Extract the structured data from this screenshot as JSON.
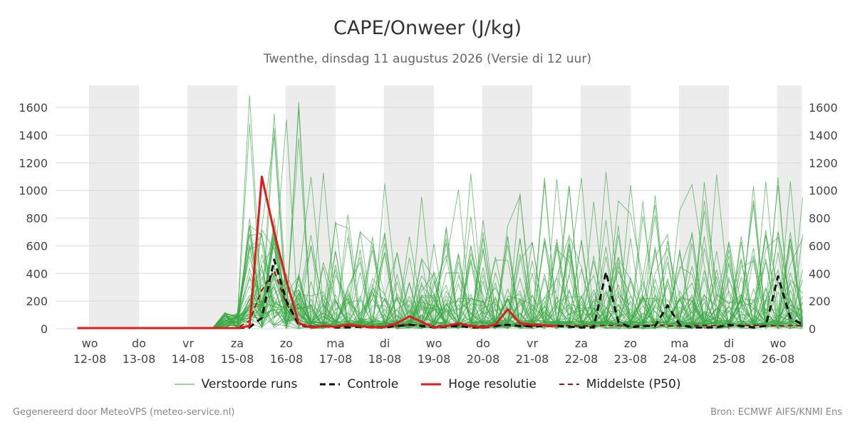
{
  "title": "CAPE/Onweer (J/kg)",
  "subtitle": "Twenthe, dinsdag 11 augustus 2026 (Versie di 12 uur)",
  "footer": {
    "left": "Gegenereerd door MeteoVPS (meteo-service.nl)",
    "right": "Bron: ECMWF AIFS/KNMI Ens"
  },
  "legend": [
    {
      "label": "Verstoorde runs",
      "color": "#41a447",
      "style": "thin"
    },
    {
      "label": "Controle",
      "color": "#111111",
      "style": "dashed"
    },
    {
      "label": "Hoge resolutie",
      "color": "#e31a1c",
      "style": "solid"
    },
    {
      "label": "Middelste (P50)",
      "color": "#a01010",
      "style": "dashed"
    }
  ],
  "chart_data": {
    "type": "line",
    "title": "CAPE/Onweer (J/kg)",
    "subtitle": "Twenthe, dinsdag 11 augustus 2026 (Versie di 12 uur)",
    "x_unit": "days since 12-08 (noon)",
    "xlim": [
      -0.25,
      14.5
    ],
    "ylim": [
      0,
      1760
    ],
    "yticks": [
      0,
      200,
      400,
      600,
      800,
      1000,
      1200,
      1400,
      1600
    ],
    "grid": true,
    "shaded_days": [
      0,
      2,
      4,
      6,
      8,
      10,
      12,
      14
    ],
    "xticks": [
      {
        "day": "wo",
        "date": "12-08"
      },
      {
        "day": "do",
        "date": "13-08"
      },
      {
        "day": "vr",
        "date": "14-08"
      },
      {
        "day": "za",
        "date": "15-08"
      },
      {
        "day": "zo",
        "date": "16-08"
      },
      {
        "day": "ma",
        "date": "17-08"
      },
      {
        "day": "di",
        "date": "18-08"
      },
      {
        "day": "wo",
        "date": "19-08"
      },
      {
        "day": "do",
        "date": "20-08"
      },
      {
        "day": "vr",
        "date": "21-08"
      },
      {
        "day": "za",
        "date": "22-08"
      },
      {
        "day": "zo",
        "date": "23-08"
      },
      {
        "day": "ma",
        "date": "24-08"
      },
      {
        "day": "di",
        "date": "25-08"
      },
      {
        "day": "wo",
        "date": "26-08"
      }
    ],
    "series": [
      {
        "name": "Hoge resolutie",
        "color": "#e31a1c",
        "x": [
          -0.25,
          0,
          0.5,
          1,
          1.5,
          2,
          2.5,
          3,
          3.25,
          3.5,
          3.75,
          4,
          4.25,
          4.5,
          4.75,
          5,
          5.25,
          5.5,
          5.75,
          6,
          6.25,
          6.5,
          6.75,
          7,
          7.25,
          7.5,
          7.75,
          8,
          8.25,
          8.5,
          8.75,
          9,
          9.25,
          9.5
        ],
        "y": [
          5,
          5,
          5,
          5,
          5,
          5,
          5,
          5,
          20,
          1100,
          700,
          350,
          40,
          10,
          20,
          15,
          30,
          20,
          10,
          15,
          40,
          90,
          50,
          10,
          20,
          40,
          20,
          10,
          30,
          140,
          40,
          30,
          25,
          20
        ]
      },
      {
        "name": "Controle",
        "color": "#111111",
        "x": [
          -0.25,
          0,
          0.5,
          1,
          1.5,
          2,
          2.5,
          3,
          3.25,
          3.5,
          3.75,
          4,
          4.25,
          4.5,
          4.75,
          5,
          5.25,
          5.5,
          5.75,
          6,
          6.25,
          6.5,
          6.75,
          7,
          7.25,
          7.5,
          7.75,
          8,
          8.25,
          8.5,
          8.75,
          9,
          9.25,
          9.5,
          9.75,
          10,
          10.25,
          10.5,
          10.75,
          11,
          11.25,
          11.5,
          11.75,
          12,
          12.25,
          12.5,
          12.75,
          13,
          13.25,
          13.5,
          13.75,
          14,
          14.25,
          14.5
        ],
        "y": [
          5,
          5,
          5,
          5,
          5,
          5,
          5,
          5,
          10,
          80,
          500,
          200,
          30,
          10,
          20,
          10,
          10,
          15,
          10,
          10,
          20,
          30,
          20,
          10,
          15,
          20,
          10,
          10,
          20,
          30,
          20,
          15,
          20,
          20,
          15,
          10,
          10,
          410,
          50,
          10,
          20,
          20,
          170,
          30,
          10,
          10,
          10,
          30,
          20,
          10,
          20,
          380,
          80,
          30
        ]
      },
      {
        "name": "Middelste (P50)",
        "color": "#a01010",
        "x": [
          -0.25,
          0,
          1,
          2,
          3,
          3.25,
          3.5,
          3.75,
          4,
          4.25,
          4.5,
          5,
          5.5,
          6,
          6.5,
          7,
          7.5,
          8,
          8.5,
          9,
          9.5,
          10,
          10.5,
          11,
          11.5,
          12,
          12.5,
          13,
          13.5,
          14,
          14.5
        ],
        "y": [
          5,
          5,
          5,
          5,
          5,
          60,
          280,
          420,
          180,
          40,
          20,
          15,
          20,
          15,
          30,
          20,
          25,
          20,
          25,
          20,
          25,
          20,
          25,
          20,
          25,
          20,
          25,
          20,
          25,
          20,
          25
        ]
      }
    ]
  }
}
